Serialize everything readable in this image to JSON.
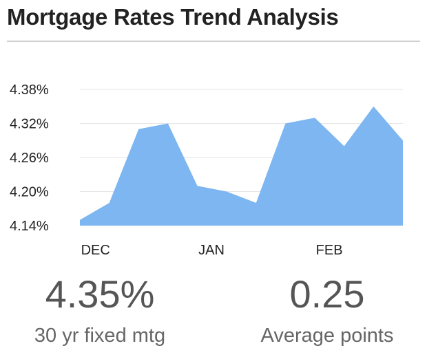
{
  "title": "Mortgage Rates Trend Analysis",
  "colors": {
    "area": "#7db6f0",
    "grid": "#e6e6e6",
    "text": "#222222"
  },
  "chart_data": {
    "type": "area",
    "title": "Mortgage Rates Trend Analysis",
    "xlabel": "",
    "ylabel": "",
    "ylim": [
      4.14,
      4.38
    ],
    "y_ticks": [
      "4.38%",
      "4.32%",
      "4.26%",
      "4.20%",
      "4.14%"
    ],
    "y_tick_values": [
      4.38,
      4.32,
      4.26,
      4.2,
      4.14
    ],
    "x_tick_labels": [
      {
        "label": "DEC",
        "index": 0.6
      },
      {
        "label": "JAN",
        "index": 4.6
      },
      {
        "label": "FEB",
        "index": 8.6
      }
    ],
    "series": [
      {
        "name": "30 yr fixed mtg",
        "values": [
          4.15,
          4.18,
          4.31,
          4.32,
          4.21,
          4.2,
          4.18,
          4.32,
          4.33,
          4.28,
          4.35,
          4.29
        ]
      }
    ],
    "grid": true
  },
  "stats": [
    {
      "value": "4.35%",
      "label": "30 yr fixed mtg"
    },
    {
      "value": "0.25",
      "label": "Average points"
    }
  ]
}
